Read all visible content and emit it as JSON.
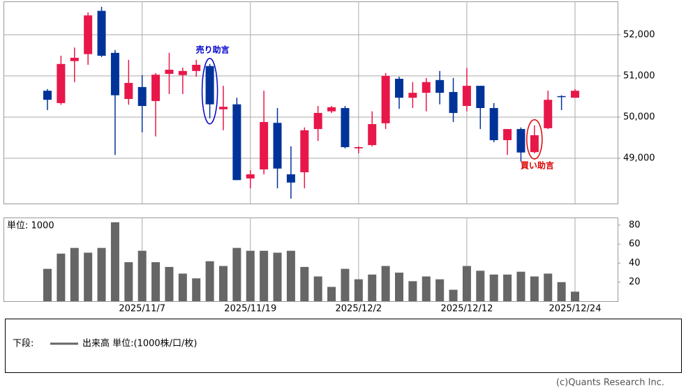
{
  "chart_data": {
    "type": "candlestick",
    "categories": [
      null,
      null,
      null,
      null,
      null,
      null,
      null,
      "2025/11/7",
      null,
      null,
      null,
      null,
      null,
      null,
      null,
      "2025/11/19",
      null,
      null,
      null,
      null,
      null,
      null,
      null,
      "2025/12/2",
      null,
      null,
      null,
      null,
      null,
      null,
      null,
      "2025/12/12",
      null,
      null,
      null,
      null,
      null,
      null,
      null,
      "2025/12/24"
    ],
    "open": [
      50640,
      50340,
      51360,
      51530,
      52580,
      51560,
      50440,
      50730,
      50390,
      51050,
      51020,
      51120,
      51240,
      50190,
      50310,
      48510,
      48730,
      49860,
      48610,
      48660,
      49710,
      50140,
      50220,
      49240,
      49320,
      49850,
      50930,
      50470,
      50590,
      50900,
      50610,
      50270,
      50760,
      50220,
      49440,
      49710,
      49150,
      49730,
      50510,
      50470
    ],
    "high": [
      50680,
      51490,
      51690,
      52540,
      52680,
      51630,
      51390,
      51020,
      51070,
      51560,
      51200,
      51390,
      51290,
      50760,
      50470,
      48710,
      50640,
      50220,
      49290,
      49750,
      50270,
      50270,
      50270,
      49290,
      50140,
      51070,
      50980,
      50850,
      50950,
      51120,
      50950,
      51190,
      50760,
      50340,
      49710,
      49750,
      49800,
      50640,
      50530,
      50680
    ],
    "low": [
      50170,
      50300,
      50850,
      51270,
      51460,
      49080,
      50300,
      49630,
      49530,
      50560,
      50560,
      50980,
      49970,
      49680,
      48470,
      48270,
      48610,
      48270,
      48020,
      48270,
      49420,
      50100,
      49240,
      49120,
      49290,
      49710,
      50200,
      50220,
      50140,
      50310,
      49880,
      50140,
      49710,
      49390,
      49080,
      48920,
      49120,
      49710,
      50170,
      50470
    ],
    "close": [
      50420,
      51290,
      51440,
      52470,
      51490,
      50530,
      50830,
      50270,
      51030,
      51150,
      51120,
      51270,
      50310,
      50250,
      48470,
      48610,
      49880,
      48750,
      48410,
      49680,
      50100,
      50240,
      49270,
      49270,
      49830,
      51000,
      50470,
      50590,
      50850,
      50590,
      50100,
      50760,
      50220,
      49440,
      49710,
      49140,
      49560,
      50420,
      50490,
      50640
    ],
    "up_color": "#e8174a",
    "down_color": "#003399",
    "ylim": [
      47900,
      52810
    ],
    "yticks": [
      {
        "value": 49000,
        "label": "49,000"
      },
      {
        "value": 50000,
        "label": "50,000"
      },
      {
        "value": 51000,
        "label": "51,000"
      },
      {
        "value": 52000,
        "label": "52,000"
      }
    ],
    "grid": true,
    "annotations": [
      {
        "text": "売り助言",
        "at": 12,
        "color": "#0000cc",
        "placement": "above"
      },
      {
        "text": "買い助言",
        "at": 36,
        "color": "#dd0000",
        "placement": "below"
      }
    ],
    "volume": {
      "unit_label": "単位: 1000",
      "color": "#666666",
      "values": [
        34,
        50,
        56,
        51,
        56,
        83,
        41,
        53,
        41,
        36,
        29,
        24,
        42,
        37,
        56,
        53,
        53,
        51,
        53,
        36,
        26,
        15,
        34,
        23,
        28,
        37,
        30,
        21,
        26,
        23,
        12,
        37,
        32,
        28,
        28,
        31,
        26,
        29,
        20,
        10
      ],
      "ylim": [
        0,
        88
      ],
      "yticks": [
        20,
        40,
        60,
        80
      ]
    },
    "legend": {
      "prefix": "下段:",
      "label": "出来高 単位:(1000株/口/枚)"
    },
    "credit": "(c)Quants Research Inc."
  }
}
